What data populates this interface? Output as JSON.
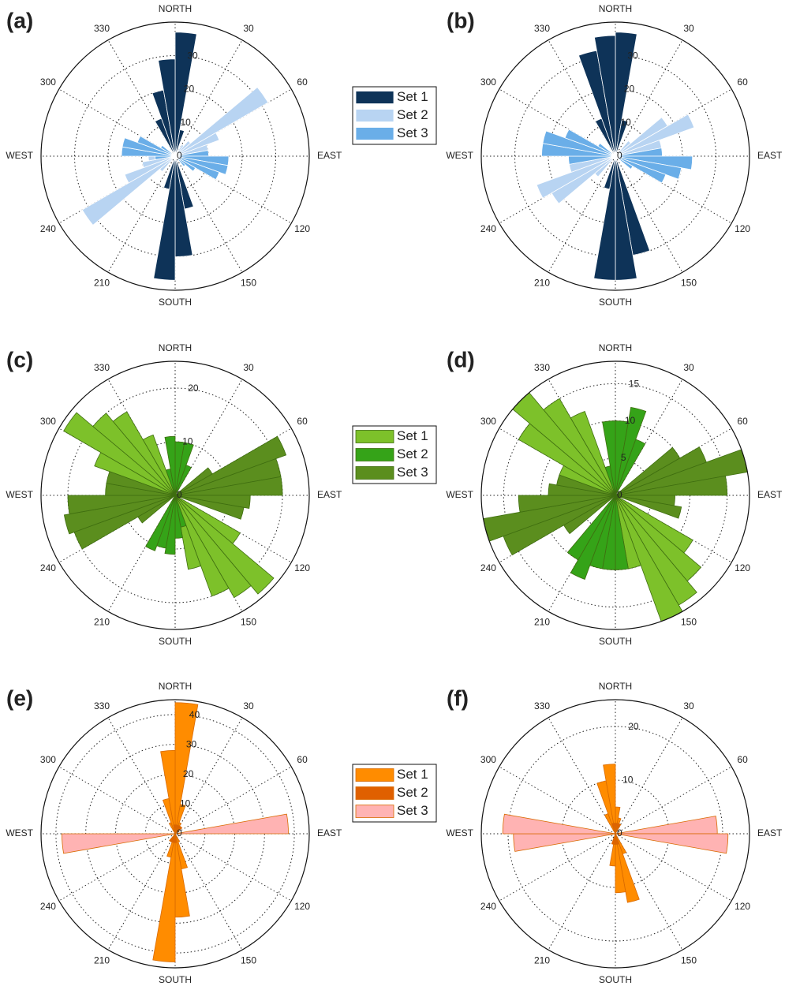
{
  "chart_data": [
    {
      "type": "rose",
      "title": "(a)",
      "rlim": [
        0,
        40
      ],
      "rticks": [
        0,
        10,
        20,
        30
      ],
      "grid": true,
      "legend": "right",
      "edgecolor": "#ffffff",
      "thetaticks": [
        {
          "value": 0,
          "label": "NORTH"
        },
        30,
        60,
        {
          "value": 90,
          "label": "EAST"
        },
        120,
        150,
        {
          "value": 180,
          "label": "SOUTH"
        },
        210,
        240,
        {
          "value": 270,
          "label": "WEST"
        },
        300,
        330
      ],
      "series": [
        {
          "name": "Set 1",
          "color": "#0e3358",
          "values": [
            37,
            8,
            0,
            0,
            0,
            0,
            0,
            0,
            0,
            0,
            0,
            0,
            0,
            0,
            0,
            0,
            16,
            30,
            37,
            10,
            0,
            0,
            0,
            0,
            0,
            0,
            0,
            0,
            0,
            0,
            0,
            0,
            0,
            12,
            20,
            29
          ]
        },
        {
          "name": "Set 2",
          "color": "#b8d4f2",
          "values": [
            0,
            0,
            0,
            4,
            6,
            32,
            14,
            10,
            6,
            0,
            0,
            0,
            0,
            0,
            0,
            0,
            0,
            0,
            0,
            0,
            0,
            0,
            6,
            32,
            16,
            10,
            8,
            0,
            5,
            0,
            0,
            0,
            0,
            0,
            0,
            0
          ]
        },
        {
          "name": "Set 3",
          "color": "#6aaee8",
          "values": [
            0,
            0,
            0,
            0,
            0,
            0,
            0,
            0,
            10,
            16,
            16,
            14,
            7,
            4,
            0,
            0,
            0,
            0,
            0,
            0,
            0,
            0,
            0,
            0,
            0,
            0,
            6,
            16,
            16,
            12,
            5,
            0,
            0,
            0,
            0,
            0
          ]
        }
      ]
    },
    {
      "type": "rose",
      "title": "(b)",
      "rlim": [
        0,
        40
      ],
      "rticks": [
        0,
        10,
        20,
        30
      ],
      "grid": true,
      "edgecolor": "#ffffff",
      "thetaticks": [
        {
          "value": 0,
          "label": "NORTH"
        },
        30,
        60,
        {
          "value": 90,
          "label": "EAST"
        },
        120,
        150,
        {
          "value": 180,
          "label": "SOUTH"
        },
        210,
        240,
        {
          "value": 270,
          "label": "WEST"
        },
        300,
        330
      ],
      "series": [
        {
          "color": "#0e3358",
          "values": [
            37,
            11,
            0,
            0,
            0,
            0,
            0,
            0,
            0,
            0,
            0,
            0,
            0,
            0,
            0,
            0,
            30,
            37,
            37,
            10,
            0,
            0,
            0,
            0,
            0,
            0,
            0,
            0,
            0,
            0,
            0,
            0,
            0,
            12,
            32,
            36
          ]
        },
        {
          "color": "#b8d4f2",
          "values": [
            0,
            0,
            0,
            0,
            6,
            18,
            25,
            14,
            10,
            0,
            0,
            0,
            0,
            0,
            0,
            0,
            0,
            0,
            0,
            0,
            0,
            0,
            8,
            22,
            25,
            14,
            10,
            0,
            0,
            0,
            0,
            0,
            0,
            0,
            0,
            0
          ]
        },
        {
          "color": "#6aaee8",
          "values": [
            0,
            0,
            0,
            0,
            0,
            0,
            0,
            0,
            14,
            23,
            20,
            16,
            6,
            0,
            0,
            0,
            0,
            0,
            0,
            0,
            0,
            0,
            0,
            0,
            0,
            0,
            14,
            22,
            22,
            16,
            6,
            0,
            0,
            0,
            0,
            0
          ]
        }
      ]
    },
    {
      "type": "rose",
      "title": "(c)",
      "rlim": [
        0,
        25
      ],
      "rticks": [
        0,
        10,
        20
      ],
      "grid": true,
      "legend": "right",
      "edgecolor": "#3f6e10",
      "thetaticks": [
        {
          "value": 0,
          "label": "NORTH"
        },
        30,
        60,
        {
          "value": 90,
          "label": "EAST"
        },
        120,
        150,
        {
          "value": 180,
          "label": "SOUTH"
        },
        210,
        240,
        {
          "value": 270,
          "label": "WEST"
        },
        300,
        330
      ],
      "series": [
        {
          "name": "Set 1",
          "color": "#7dc12a",
          "values": [
            0,
            0,
            0,
            0,
            0,
            0,
            0,
            0,
            0,
            0,
            0,
            0,
            14,
            24,
            22,
            20,
            14,
            0,
            0,
            0,
            0,
            0,
            0,
            0,
            0,
            0,
            0,
            0,
            0,
            16,
            24,
            20,
            18,
            12,
            0,
            0
          ]
        },
        {
          "name": "Set 2",
          "color": "#35a318",
          "values": [
            10,
            10,
            6,
            0,
            0,
            0,
            0,
            0,
            0,
            0,
            0,
            0,
            0,
            0,
            0,
            0,
            6,
            8,
            11,
            10,
            11,
            0,
            0,
            0,
            0,
            0,
            0,
            0,
            0,
            0,
            0,
            0,
            0,
            0,
            5,
            11
          ]
        },
        {
          "name": "Set 3",
          "color": "#5b8e1e",
          "values": [
            0,
            0,
            0,
            0,
            0,
            8,
            22,
            20,
            20,
            14,
            13,
            0,
            0,
            0,
            0,
            0,
            0,
            0,
            0,
            0,
            0,
            0,
            0,
            8,
            20,
            21,
            20,
            13,
            13,
            0,
            0,
            0,
            0,
            0,
            0,
            0
          ]
        }
      ]
    },
    {
      "type": "rose",
      "title": "(d)",
      "rlim": [
        0,
        18
      ],
      "rticks": [
        0,
        5,
        10,
        15
      ],
      "grid": true,
      "edgecolor": "#3f6e10",
      "thetaticks": [
        {
          "value": 0,
          "label": "NORTH"
        },
        30,
        60,
        {
          "value": 90,
          "label": "EAST"
        },
        120,
        150,
        {
          "value": 180,
          "label": "SOUTH"
        },
        210,
        240,
        {
          "value": 270,
          "label": "WEST"
        },
        300,
        330
      ],
      "series": [
        {
          "color": "#7dc12a",
          "values": [
            0,
            0,
            0,
            0,
            0,
            0,
            0,
            0,
            0,
            0,
            0,
            0,
            12,
            15,
            17,
            18,
            10,
            0,
            0,
            0,
            0,
            0,
            0,
            0,
            0,
            0,
            0,
            0,
            0,
            8,
            15,
            18,
            15,
            12,
            0,
            0
          ]
        },
        {
          "color": "#35a318",
          "values": [
            10,
            12,
            8,
            0,
            0,
            0,
            0,
            0,
            0,
            0,
            0,
            0,
            0,
            0,
            0,
            0,
            0,
            10,
            10,
            10,
            12,
            10,
            0,
            0,
            0,
            0,
            0,
            0,
            0,
            0,
            0,
            0,
            0,
            0,
            4,
            10
          ]
        },
        {
          "color": "#5b8e1e",
          "values": [
            0,
            0,
            0,
            0,
            0,
            10,
            13,
            18,
            15,
            8,
            9,
            0,
            0,
            0,
            0,
            0,
            0,
            0,
            0,
            0,
            0,
            0,
            0,
            8,
            16,
            18,
            13,
            9,
            8,
            0,
            0,
            0,
            0,
            0,
            0,
            0
          ]
        }
      ]
    },
    {
      "type": "rose",
      "title": "(e)",
      "rlim": [
        0,
        45
      ],
      "rticks": [
        0,
        10,
        20,
        30,
        40
      ],
      "grid": true,
      "legend": "right",
      "edgecolor": "#d96a00",
      "thetaticks": [
        {
          "value": 0,
          "label": "NORTH"
        },
        30,
        60,
        {
          "value": 90,
          "label": "EAST"
        },
        120,
        150,
        {
          "value": 180,
          "label": "SOUTH"
        },
        210,
        240,
        {
          "value": 270,
          "label": "WEST"
        },
        300,
        330
      ],
      "series": [
        {
          "name": "Set 1",
          "color": "#ff8c00",
          "values": [
            44,
            10,
            4,
            0,
            0,
            0,
            0,
            0,
            0,
            0,
            0,
            0,
            0,
            0,
            0,
            3,
            12,
            28,
            43,
            8,
            3,
            0,
            0,
            0,
            0,
            0,
            0,
            0,
            0,
            0,
            0,
            0,
            0,
            4,
            12,
            28
          ]
        },
        {
          "name": "Set 2",
          "color": "#e06000",
          "values": [
            3,
            3,
            3,
            3,
            3,
            0,
            0,
            0,
            0,
            0,
            0,
            0,
            0,
            0,
            0,
            0,
            0,
            3,
            3,
            3,
            3,
            3,
            0,
            0,
            0,
            0,
            0,
            0,
            0,
            0,
            0,
            0,
            0,
            0,
            0,
            3
          ]
        },
        {
          "name": "Set 3",
          "color": "#ffb3b3",
          "values": [
            0,
            0,
            0,
            0,
            0,
            0,
            0,
            0,
            38,
            0,
            0,
            0,
            0,
            0,
            0,
            0,
            0,
            0,
            0,
            0,
            0,
            0,
            0,
            0,
            0,
            0,
            38,
            0,
            0,
            0,
            0,
            0,
            0,
            0,
            0,
            0
          ]
        }
      ]
    },
    {
      "type": "rose",
      "title": "(f)",
      "rlim": [
        0,
        25
      ],
      "rticks": [
        0,
        10,
        20
      ],
      "grid": true,
      "edgecolor": "#d96a00",
      "thetaticks": [
        {
          "value": 0,
          "label": "NORTH"
        },
        30,
        60,
        {
          "value": 90,
          "label": "EAST"
        },
        120,
        150,
        {
          "value": 180,
          "label": "SOUTH"
        },
        210,
        240,
        {
          "value": 270,
          "label": "WEST"
        },
        300,
        330
      ],
      "series": [
        {
          "color": "#ff8c00",
          "values": [
            5,
            3,
            0,
            0,
            0,
            0,
            0,
            0,
            0,
            0,
            0,
            0,
            0,
            0,
            0,
            4,
            13,
            11,
            6,
            0,
            0,
            0,
            0,
            0,
            0,
            0,
            0,
            0,
            0,
            0,
            0,
            0,
            0,
            4,
            10,
            13
          ]
        },
        {
          "color": "#e06000",
          "values": [
            2,
            2,
            2,
            0,
            0,
            0,
            0,
            0,
            0,
            0,
            0,
            0,
            0,
            0,
            0,
            0,
            2,
            2,
            2,
            2,
            0,
            0,
            0,
            0,
            0,
            0,
            0,
            0,
            0,
            0,
            0,
            0,
            0,
            0,
            2,
            2
          ]
        },
        {
          "color": "#ffb3b3",
          "values": [
            0,
            0,
            0,
            0,
            0,
            0,
            0,
            0,
            19,
            21,
            0,
            0,
            0,
            0,
            0,
            0,
            0,
            0,
            0,
            0,
            0,
            0,
            0,
            0,
            0,
            0,
            19,
            21,
            0,
            0,
            0,
            0,
            0,
            0,
            0,
            0
          ]
        }
      ]
    }
  ]
}
